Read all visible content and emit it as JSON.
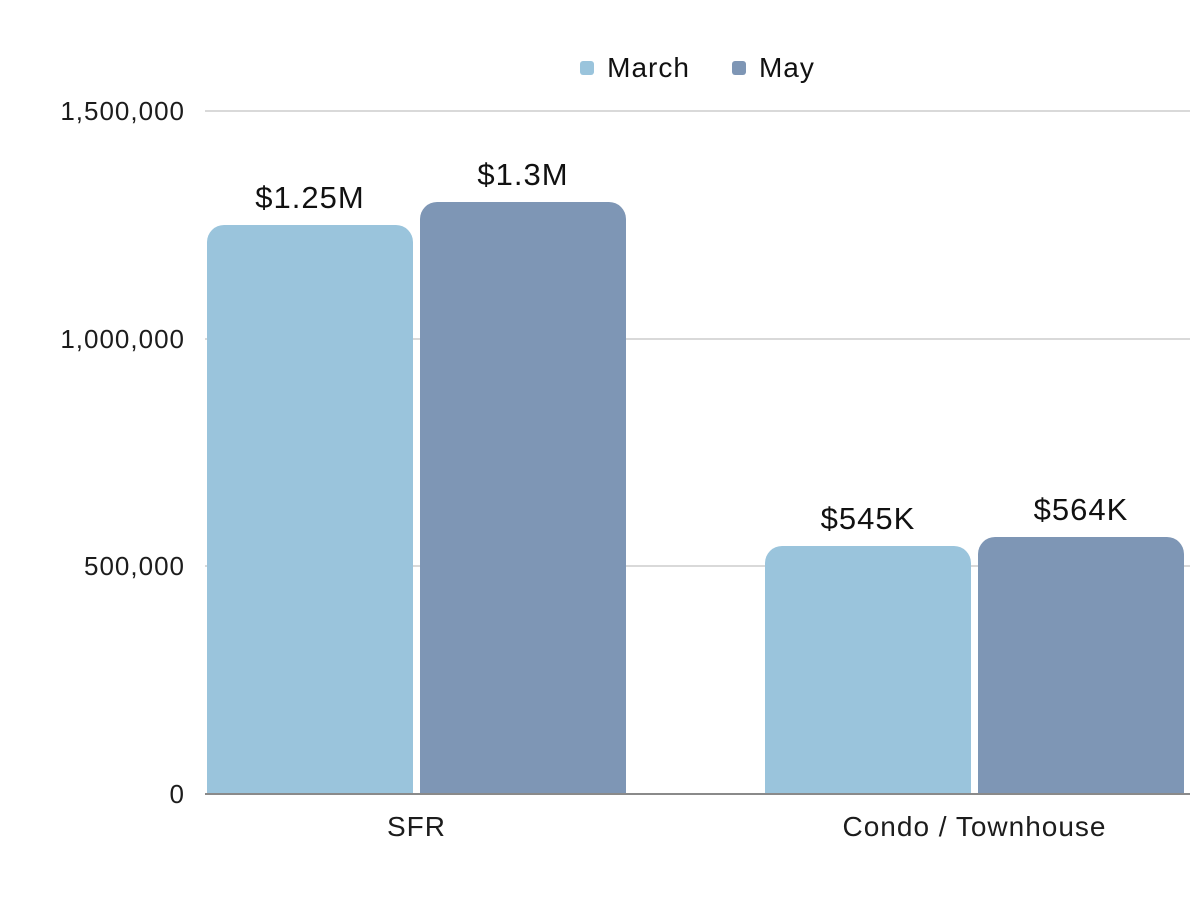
{
  "chart_data": {
    "type": "bar",
    "title": "",
    "categories": [
      "SFR",
      "Condo / Townhouse"
    ],
    "series": [
      {
        "name": "March",
        "color": "#9AC4DC",
        "values": [
          1250000,
          545000
        ],
        "value_labels": [
          "$1.25M",
          "$545K"
        ]
      },
      {
        "name": "May",
        "color": "#7E96B5",
        "values": [
          1300000,
          564000
        ],
        "value_labels": [
          "$1.3M",
          "$564K"
        ]
      }
    ],
    "ylim": [
      0,
      1500000
    ],
    "yticks": [
      0,
      500000,
      1000000,
      1500000
    ],
    "ytick_labels": [
      "0",
      "500,000",
      "1,000,000",
      "1,500,000"
    ],
    "grid": "horizontal",
    "legend_position": "top-center",
    "colors": {
      "grid_line": "#d9d9d9",
      "axis_baseline": "#8a8a8a",
      "text": "#1a1a1a",
      "background": "#ffffff"
    }
  }
}
